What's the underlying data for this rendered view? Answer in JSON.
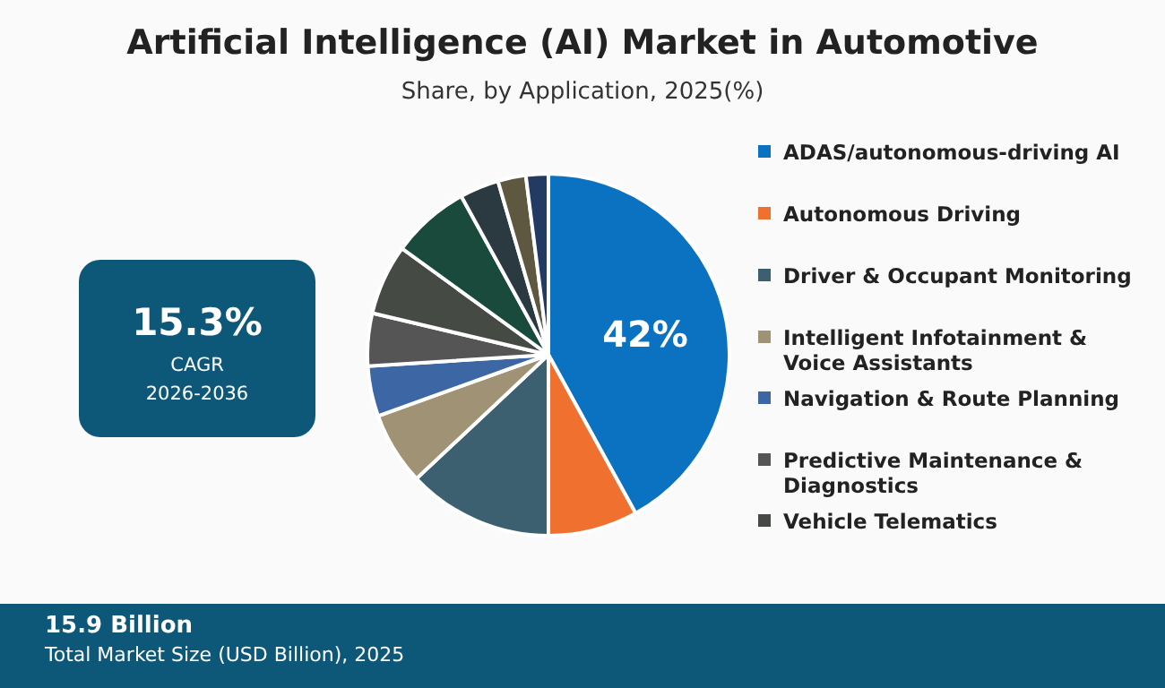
{
  "chart_data": {
    "type": "pie",
    "title": "Artificial Intelligence (AI) Market in Automotive",
    "subtitle": "Share, by Application, 2025(%)",
    "categories": [
      "ADAS/autonomous-driving AI",
      "Autonomous Driving",
      "Driver & Occupant Monitoring",
      "Intelligent Infotainment & Voice Assistants",
      "Navigation & Route Planning",
      "Predictive Maintenance & Diagnostics",
      "Vehicle Telematics",
      null,
      null,
      null,
      null
    ],
    "values": [
      42,
      8,
      13,
      6.5,
      4.5,
      4.7,
      6.3,
      7,
      3.5,
      2.5,
      2
    ],
    "colors": [
      "#0a72c0",
      "#f07030",
      "#3d6070",
      "#9f9275",
      "#3d66a5",
      "#555555",
      "#454a44",
      "#1a4a3c",
      "#2a3a40",
      "#5e5840",
      "#233a62"
    ],
    "value_labels": [
      "42%",
      null,
      null,
      null,
      null,
      null,
      null,
      null,
      null,
      null,
      null
    ],
    "legend": "right",
    "annotations": [
      "15.3%",
      "CAGR",
      "2026-2036",
      "15.9 Billion",
      "Total Market Size (USD Billion), 2025"
    ]
  }
}
